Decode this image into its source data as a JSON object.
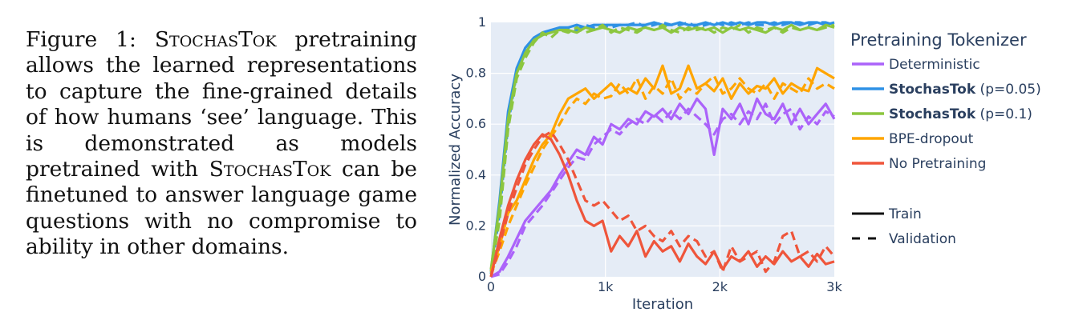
{
  "caption": {
    "label": "Figure 1:",
    "method_name": "StochasTok",
    "part1": "pretraining allows the learned representations to capture the fine-grained details of how humans ‘see’ language. This is demonstrated as models pretrained with",
    "part2": "can be finetuned to answer language game questions with no compromise to ability in other domains."
  },
  "colors": {
    "plot_bg": "#E5ECF6",
    "grid": "#ffffff",
    "text": "#2A3F5F",
    "deterministic": "#AB63FA",
    "stochastok_005": "#2E91E5",
    "stochastok_01": "#8CC63F",
    "bpe_dropout": "#FFA500",
    "no_pretraining": "#EF553B"
  },
  "chart_data": {
    "type": "line",
    "xlabel": "Iteration",
    "ylabel": "Normalized Accuracy",
    "xlim": [
      0,
      3000
    ],
    "ylim": [
      0,
      1
    ],
    "x_ticks": [
      {
        "value": 0,
        "label": "0"
      },
      {
        "value": 1000,
        "label": "1k"
      },
      {
        "value": 2000,
        "label": "2k"
      },
      {
        "value": 3000,
        "label": "3k"
      }
    ],
    "y_ticks": [
      {
        "value": 0,
        "label": "0"
      },
      {
        "value": 0.2,
        "label": "0.2"
      },
      {
        "value": 0.4,
        "label": "0.4"
      },
      {
        "value": 0.6,
        "label": "0.6"
      },
      {
        "value": 0.8,
        "label": "0.8"
      },
      {
        "value": 1,
        "label": "1"
      }
    ],
    "grid": true,
    "legend": {
      "title": "Pretraining Tokenizer",
      "placement": "right",
      "entries": [
        {
          "key": "deterministic",
          "bold": "",
          "label": "Deterministic"
        },
        {
          "key": "stochastok_005",
          "bold": "StochasTok",
          "label": " (p=0.05)"
        },
        {
          "key": "stochastok_01",
          "bold": "StochasTok",
          "label": " (p=0.1)"
        },
        {
          "key": "bpe_dropout",
          "bold": "",
          "label": "BPE-dropout"
        },
        {
          "key": "no_pretraining",
          "bold": "",
          "label": "No Pretraining"
        }
      ],
      "styles": [
        {
          "dash": "solid",
          "label": "Train"
        },
        {
          "dash": "dash",
          "label": "Validation"
        }
      ]
    },
    "x": [
      0,
      75,
      150,
      225,
      300,
      375,
      450,
      525,
      600,
      675,
      750,
      825,
      900,
      975,
      1050,
      1125,
      1200,
      1275,
      1350,
      1425,
      1500,
      1575,
      1650,
      1725,
      1800,
      1875,
      1950,
      2025,
      2100,
      2175,
      2250,
      2325,
      2400,
      2475,
      2550,
      2625,
      2700,
      2775,
      2850,
      2925,
      3000
    ],
    "series": [
      {
        "key": "deterministic",
        "name": "Deterministic",
        "split": "Train",
        "values": [
          0.0,
          0.02,
          0.08,
          0.15,
          0.22,
          0.26,
          0.3,
          0.34,
          0.4,
          0.45,
          0.5,
          0.48,
          0.55,
          0.52,
          0.6,
          0.58,
          0.62,
          0.6,
          0.65,
          0.63,
          0.66,
          0.62,
          0.68,
          0.64,
          0.7,
          0.66,
          0.48,
          0.66,
          0.62,
          0.68,
          0.6,
          0.7,
          0.64,
          0.62,
          0.68,
          0.6,
          0.66,
          0.6,
          0.64,
          0.68,
          0.62
        ]
      },
      {
        "key": "deterministic",
        "name": "Deterministic",
        "split": "Validation",
        "values": [
          0.0,
          0.01,
          0.06,
          0.12,
          0.2,
          0.24,
          0.28,
          0.33,
          0.38,
          0.43,
          0.47,
          0.46,
          0.52,
          0.55,
          0.58,
          0.56,
          0.6,
          0.62,
          0.6,
          0.64,
          0.61,
          0.65,
          0.62,
          0.66,
          0.63,
          0.6,
          0.56,
          0.62,
          0.64,
          0.6,
          0.65,
          0.62,
          0.68,
          0.6,
          0.64,
          0.66,
          0.58,
          0.63,
          0.6,
          0.65,
          0.63
        ]
      },
      {
        "key": "stochastok_005",
        "name": "StochasTok (p=0.05)",
        "split": "Train",
        "values": [
          0.02,
          0.3,
          0.65,
          0.82,
          0.9,
          0.94,
          0.96,
          0.97,
          0.98,
          0.98,
          0.99,
          0.98,
          0.99,
          0.99,
          0.99,
          0.99,
          0.99,
          0.99,
          0.99,
          1.0,
          0.99,
          0.99,
          1.0,
          0.99,
          0.99,
          1.0,
          0.99,
          1.0,
          0.99,
          1.0,
          0.99,
          1.0,
          1.0,
          0.99,
          1.0,
          1.0,
          0.99,
          1.0,
          1.0,
          0.99,
          1.0
        ]
      },
      {
        "key": "stochastok_005",
        "name": "StochasTok (p=0.05)",
        "split": "Validation",
        "values": [
          0.01,
          0.25,
          0.6,
          0.8,
          0.89,
          0.93,
          0.95,
          0.97,
          0.96,
          0.98,
          0.97,
          0.99,
          0.98,
          0.99,
          0.98,
          0.99,
          0.99,
          1.0,
          0.98,
          0.99,
          1.0,
          0.99,
          0.99,
          1.0,
          0.98,
          0.99,
          1.0,
          0.99,
          1.0,
          0.99,
          1.0,
          0.99,
          0.99,
          1.0,
          0.99,
          1.0,
          1.0,
          0.99,
          1.0,
          1.0,
          0.99
        ]
      },
      {
        "key": "stochastok_01",
        "name": "StochasTok (p=0.1)",
        "split": "Train",
        "values": [
          0.03,
          0.28,
          0.62,
          0.8,
          0.88,
          0.93,
          0.95,
          0.96,
          0.97,
          0.97,
          0.96,
          0.98,
          0.97,
          0.98,
          0.97,
          0.96,
          0.98,
          0.97,
          0.98,
          0.97,
          0.98,
          0.96,
          0.98,
          0.97,
          0.98,
          0.97,
          0.98,
          0.96,
          0.98,
          0.97,
          0.98,
          0.97,
          0.96,
          0.98,
          0.97,
          0.99,
          0.97,
          0.98,
          0.97,
          0.99,
          0.98
        ]
      },
      {
        "key": "stochastok_01",
        "name": "StochasTok (p=0.1)",
        "split": "Validation",
        "values": [
          0.02,
          0.22,
          0.58,
          0.78,
          0.86,
          0.92,
          0.96,
          0.94,
          0.97,
          0.96,
          0.98,
          0.96,
          0.97,
          0.99,
          0.96,
          0.98,
          0.97,
          0.96,
          0.98,
          0.97,
          0.99,
          0.97,
          0.96,
          0.98,
          0.97,
          0.98,
          0.96,
          0.98,
          0.97,
          0.99,
          0.96,
          0.98,
          0.97,
          0.98,
          0.96,
          0.98,
          0.97,
          0.98,
          0.97,
          0.98,
          0.99
        ]
      },
      {
        "key": "bpe_dropout",
        "name": "BPE-dropout",
        "split": "Train",
        "values": [
          0.02,
          0.12,
          0.25,
          0.3,
          0.38,
          0.46,
          0.52,
          0.56,
          0.64,
          0.7,
          0.72,
          0.74,
          0.7,
          0.73,
          0.76,
          0.72,
          0.74,
          0.72,
          0.78,
          0.74,
          0.83,
          0.72,
          0.74,
          0.83,
          0.74,
          0.76,
          0.73,
          0.78,
          0.7,
          0.76,
          0.72,
          0.75,
          0.74,
          0.78,
          0.72,
          0.76,
          0.74,
          0.73,
          0.82,
          0.8,
          0.78
        ]
      },
      {
        "key": "bpe_dropout",
        "name": "BPE-dropout",
        "split": "Validation",
        "values": [
          0.01,
          0.1,
          0.2,
          0.28,
          0.36,
          0.43,
          0.5,
          0.55,
          0.6,
          0.66,
          0.7,
          0.68,
          0.72,
          0.7,
          0.71,
          0.76,
          0.72,
          0.78,
          0.7,
          0.75,
          0.72,
          0.78,
          0.7,
          0.74,
          0.72,
          0.76,
          0.79,
          0.72,
          0.74,
          0.78,
          0.74,
          0.72,
          0.76,
          0.7,
          0.76,
          0.74,
          0.72,
          0.78,
          0.74,
          0.76,
          0.74
        ]
      },
      {
        "key": "no_pretraining",
        "name": "No Pretraining",
        "split": "Train",
        "values": [
          0.0,
          0.15,
          0.28,
          0.38,
          0.46,
          0.52,
          0.56,
          0.54,
          0.48,
          0.4,
          0.3,
          0.22,
          0.2,
          0.22,
          0.1,
          0.16,
          0.12,
          0.18,
          0.08,
          0.14,
          0.1,
          0.12,
          0.06,
          0.13,
          0.08,
          0.05,
          0.1,
          0.03,
          0.08,
          0.06,
          0.1,
          0.04,
          0.08,
          0.05,
          0.1,
          0.06,
          0.08,
          0.04,
          0.09,
          0.05,
          0.06
        ]
      },
      {
        "key": "no_pretraining",
        "name": "No Pretraining",
        "split": "Validation",
        "values": [
          0.0,
          0.12,
          0.25,
          0.35,
          0.44,
          0.5,
          0.55,
          0.57,
          0.52,
          0.46,
          0.38,
          0.3,
          0.28,
          0.3,
          0.26,
          0.22,
          0.24,
          0.18,
          0.2,
          0.16,
          0.14,
          0.18,
          0.12,
          0.16,
          0.14,
          0.08,
          0.1,
          0.02,
          0.12,
          0.06,
          0.08,
          0.1,
          0.02,
          0.06,
          0.16,
          0.18,
          0.08,
          0.1,
          0.06,
          0.12,
          0.08
        ]
      }
    ]
  }
}
